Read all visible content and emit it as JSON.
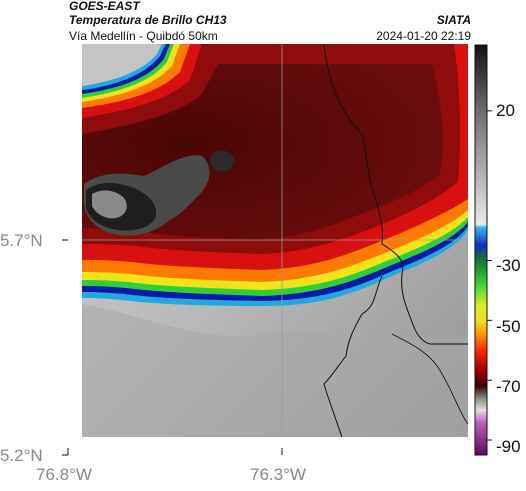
{
  "header": {
    "satellite": "GOES-EAST",
    "product": "Temperatura de Brillo CH13",
    "region": "Vía Medellín - Quibdó 50km",
    "brand": "SIATA",
    "datetime": "2024-01-20 22:19"
  },
  "axes": {
    "y_ticks": [
      "5.7°N",
      "5.2°N"
    ],
    "x_ticks": [
      "76.8°W",
      "76.3°W"
    ]
  },
  "colorbar": {
    "tick_labels": [
      "20",
      "-30",
      "-50",
      "-70",
      "-90"
    ],
    "tick_values": [
      20,
      -30,
      -50,
      -70,
      -90
    ],
    "range": [
      -95,
      42
    ],
    "stops": [
      {
        "v": 42,
        "c": "#111111"
      },
      {
        "v": 20,
        "c": "#6e6e6e"
      },
      {
        "v": -18,
        "c": "#eaeaea"
      },
      {
        "v": -19,
        "c": "#30b8e8"
      },
      {
        "v": -25,
        "c": "#1030c0"
      },
      {
        "v": -30,
        "c": "#0e7a3a"
      },
      {
        "v": -38,
        "c": "#3ad43a"
      },
      {
        "v": -45,
        "c": "#d8ee20"
      },
      {
        "v": -50,
        "c": "#f0e020"
      },
      {
        "v": -55,
        "c": "#ff8c00"
      },
      {
        "v": -60,
        "c": "#ff2a00"
      },
      {
        "v": -66,
        "c": "#b00000"
      },
      {
        "v": -72,
        "c": "#3a0000"
      },
      {
        "v": -76,
        "c": "#8a8a8a"
      },
      {
        "v": -80,
        "c": "#e0e0e0"
      },
      {
        "v": -84,
        "c": "#c060c0"
      },
      {
        "v": -95,
        "c": "#5a0a5a"
      }
    ]
  },
  "map": {
    "colors": {
      "cold_core": "#1e1e1e",
      "dark_red": "#4a0808",
      "red": "#d81010",
      "orange": "#ff7a00",
      "yellow": "#f2e21a",
      "green": "#2fcf3a",
      "cyan": "#20a8e0",
      "blue": "#0a1aa8",
      "ground_light": "#d6d6d6",
      "ground_dark": "#8a8a8a",
      "border": "#111111",
      "grid": "#9a9a9a"
    }
  }
}
